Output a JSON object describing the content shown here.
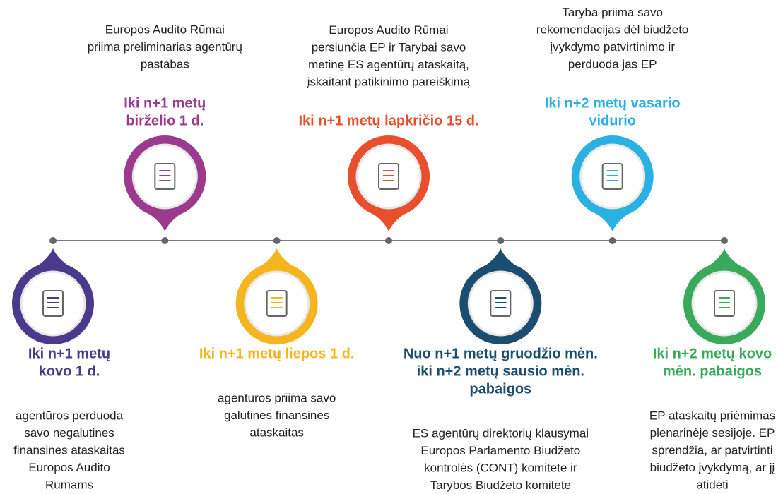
{
  "steps": [
    {
      "color": "#4b3a8c",
      "title": [
        "Iki n+1 metų",
        "kovo 1 d."
      ],
      "description": [
        "agentūros perduoda",
        "savo negalutines",
        "finansines ataskaitas",
        "Europos Audito",
        "Rūmams"
      ]
    },
    {
      "color": "#9c3a8e",
      "title": [
        "Iki n+1 metų",
        "birželio 1 d."
      ],
      "description": [
        "Europos Audito Rūmai",
        "priima preliminarias agentūrų",
        "pastabas"
      ]
    },
    {
      "color": "#f5b51e",
      "title": [
        "Iki n+1 metų liepos 1 d."
      ],
      "description": [
        "agentūros priima savo",
        "galutines finansines",
        "ataskaitas"
      ]
    },
    {
      "color": "#e8502d",
      "title": [
        "Iki n+1 metų lapkričio 15 d."
      ],
      "description": [
        "Europos Audito Rūmai",
        "persiunčia EP ir Tarybai savo",
        "metinę ES agentūrų ataskaitą,",
        "įskaitant patikinimo pareiškimą"
      ]
    },
    {
      "color": "#1b4d70",
      "title": [
        "Nuo n+1 metų gruodžio mėn.",
        "iki n+2 metų sausio mėn.",
        "pabaigos"
      ],
      "description": [
        "ES agentūrų direktorių klausymai",
        "Europos Parlamento Biudžeto",
        "kontrolės (CONT) komitete ir",
        "Tarybos Biudžeto komitete"
      ]
    },
    {
      "color": "#2bb0e2",
      "title": [
        "Iki n+2 metų vasario",
        "vidurio"
      ],
      "description": [
        "Taryba priima savo",
        "rekomendacijas dėl biudžeto",
        "įvykdymo patvirtinimo ir",
        "perduoda jas EP"
      ]
    },
    {
      "color": "#39a95b",
      "title": [
        "Iki n+2 metų kovo",
        "mėn. pabaigos"
      ],
      "description": [
        "EP ataskaitų priėmimas",
        "plenarinėje sesijoje. EP",
        "sprendžia, ar patvirtinti",
        "biudžeto įvykdymą, ar jį",
        "atidėti"
      ]
    }
  ]
}
